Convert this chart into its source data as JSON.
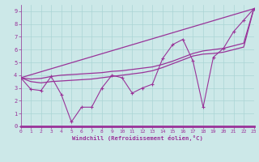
{
  "xlabel": "Windchill (Refroidissement éolien,°C)",
  "xlim": [
    0,
    23
  ],
  "ylim": [
    0,
    9.5
  ],
  "xticks": [
    0,
    1,
    2,
    3,
    4,
    5,
    6,
    7,
    8,
    9,
    10,
    11,
    12,
    13,
    14,
    15,
    16,
    17,
    18,
    19,
    20,
    21,
    22,
    23
  ],
  "yticks": [
    0,
    1,
    2,
    3,
    4,
    5,
    6,
    7,
    8,
    9
  ],
  "bg_color": "#cce8e8",
  "grid_color": "#aad4d4",
  "line_color": "#993399",
  "line1_x": [
    0,
    1,
    2,
    3,
    4,
    5,
    6,
    7,
    8,
    9,
    10,
    11,
    12,
    13,
    14,
    15,
    16,
    17,
    18,
    19,
    20,
    21,
    22,
    23
  ],
  "line1_y": [
    3.8,
    2.9,
    2.8,
    3.9,
    2.5,
    0.35,
    1.5,
    1.5,
    3.0,
    4.0,
    3.8,
    2.6,
    3.0,
    3.3,
    5.3,
    6.4,
    6.8,
    5.1,
    1.5,
    5.4,
    6.1,
    7.4,
    8.3,
    9.2
  ],
  "line2_x": [
    0,
    23
  ],
  "line2_y": [
    3.8,
    9.2
  ],
  "line3_x": [
    0,
    1,
    2,
    3,
    4,
    5,
    6,
    7,
    8,
    9,
    10,
    11,
    12,
    13,
    14,
    15,
    16,
    17,
    18,
    19,
    20,
    21,
    22,
    23
  ],
  "line3_y": [
    3.8,
    3.7,
    3.75,
    3.9,
    4.0,
    4.05,
    4.1,
    4.15,
    4.2,
    4.3,
    4.35,
    4.45,
    4.55,
    4.65,
    4.85,
    5.1,
    5.4,
    5.7,
    5.9,
    6.0,
    6.1,
    6.3,
    6.5,
    9.2
  ],
  "line4_x": [
    0,
    1,
    2,
    3,
    4,
    5,
    6,
    7,
    8,
    9,
    10,
    11,
    12,
    13,
    14,
    15,
    16,
    17,
    18,
    19,
    20,
    21,
    22,
    23
  ],
  "line4_y": [
    3.8,
    3.5,
    3.4,
    3.5,
    3.55,
    3.6,
    3.65,
    3.7,
    3.8,
    3.9,
    4.0,
    4.1,
    4.2,
    4.35,
    4.6,
    4.9,
    5.2,
    5.5,
    5.65,
    5.7,
    5.8,
    6.0,
    6.2,
    9.2
  ]
}
